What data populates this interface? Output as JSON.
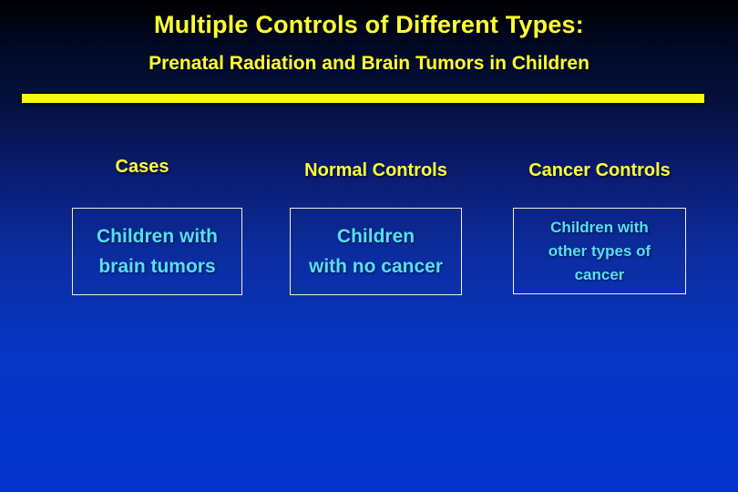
{
  "slide": {
    "title": "Multiple Controls of Different Types:",
    "subtitle": "Prenatal Radiation and Brain Tumors in Children",
    "colors": {
      "background_top": "#000001",
      "background_bottom": "#0333cc",
      "heading_text": "#ffff33",
      "divider_bar": "#fafa00",
      "box_border": "#edf2d4",
      "box_text": "#55e0f2"
    },
    "columns": [
      {
        "header": "Cases",
        "box_lines": [
          "Children with",
          "brain tumors"
        ]
      },
      {
        "header": "Normal Controls",
        "box_lines": [
          "Children",
          "with no cancer"
        ]
      },
      {
        "header": "Cancer Controls",
        "box_lines": [
          "Children with",
          "other types of",
          "cancer"
        ]
      }
    ]
  }
}
